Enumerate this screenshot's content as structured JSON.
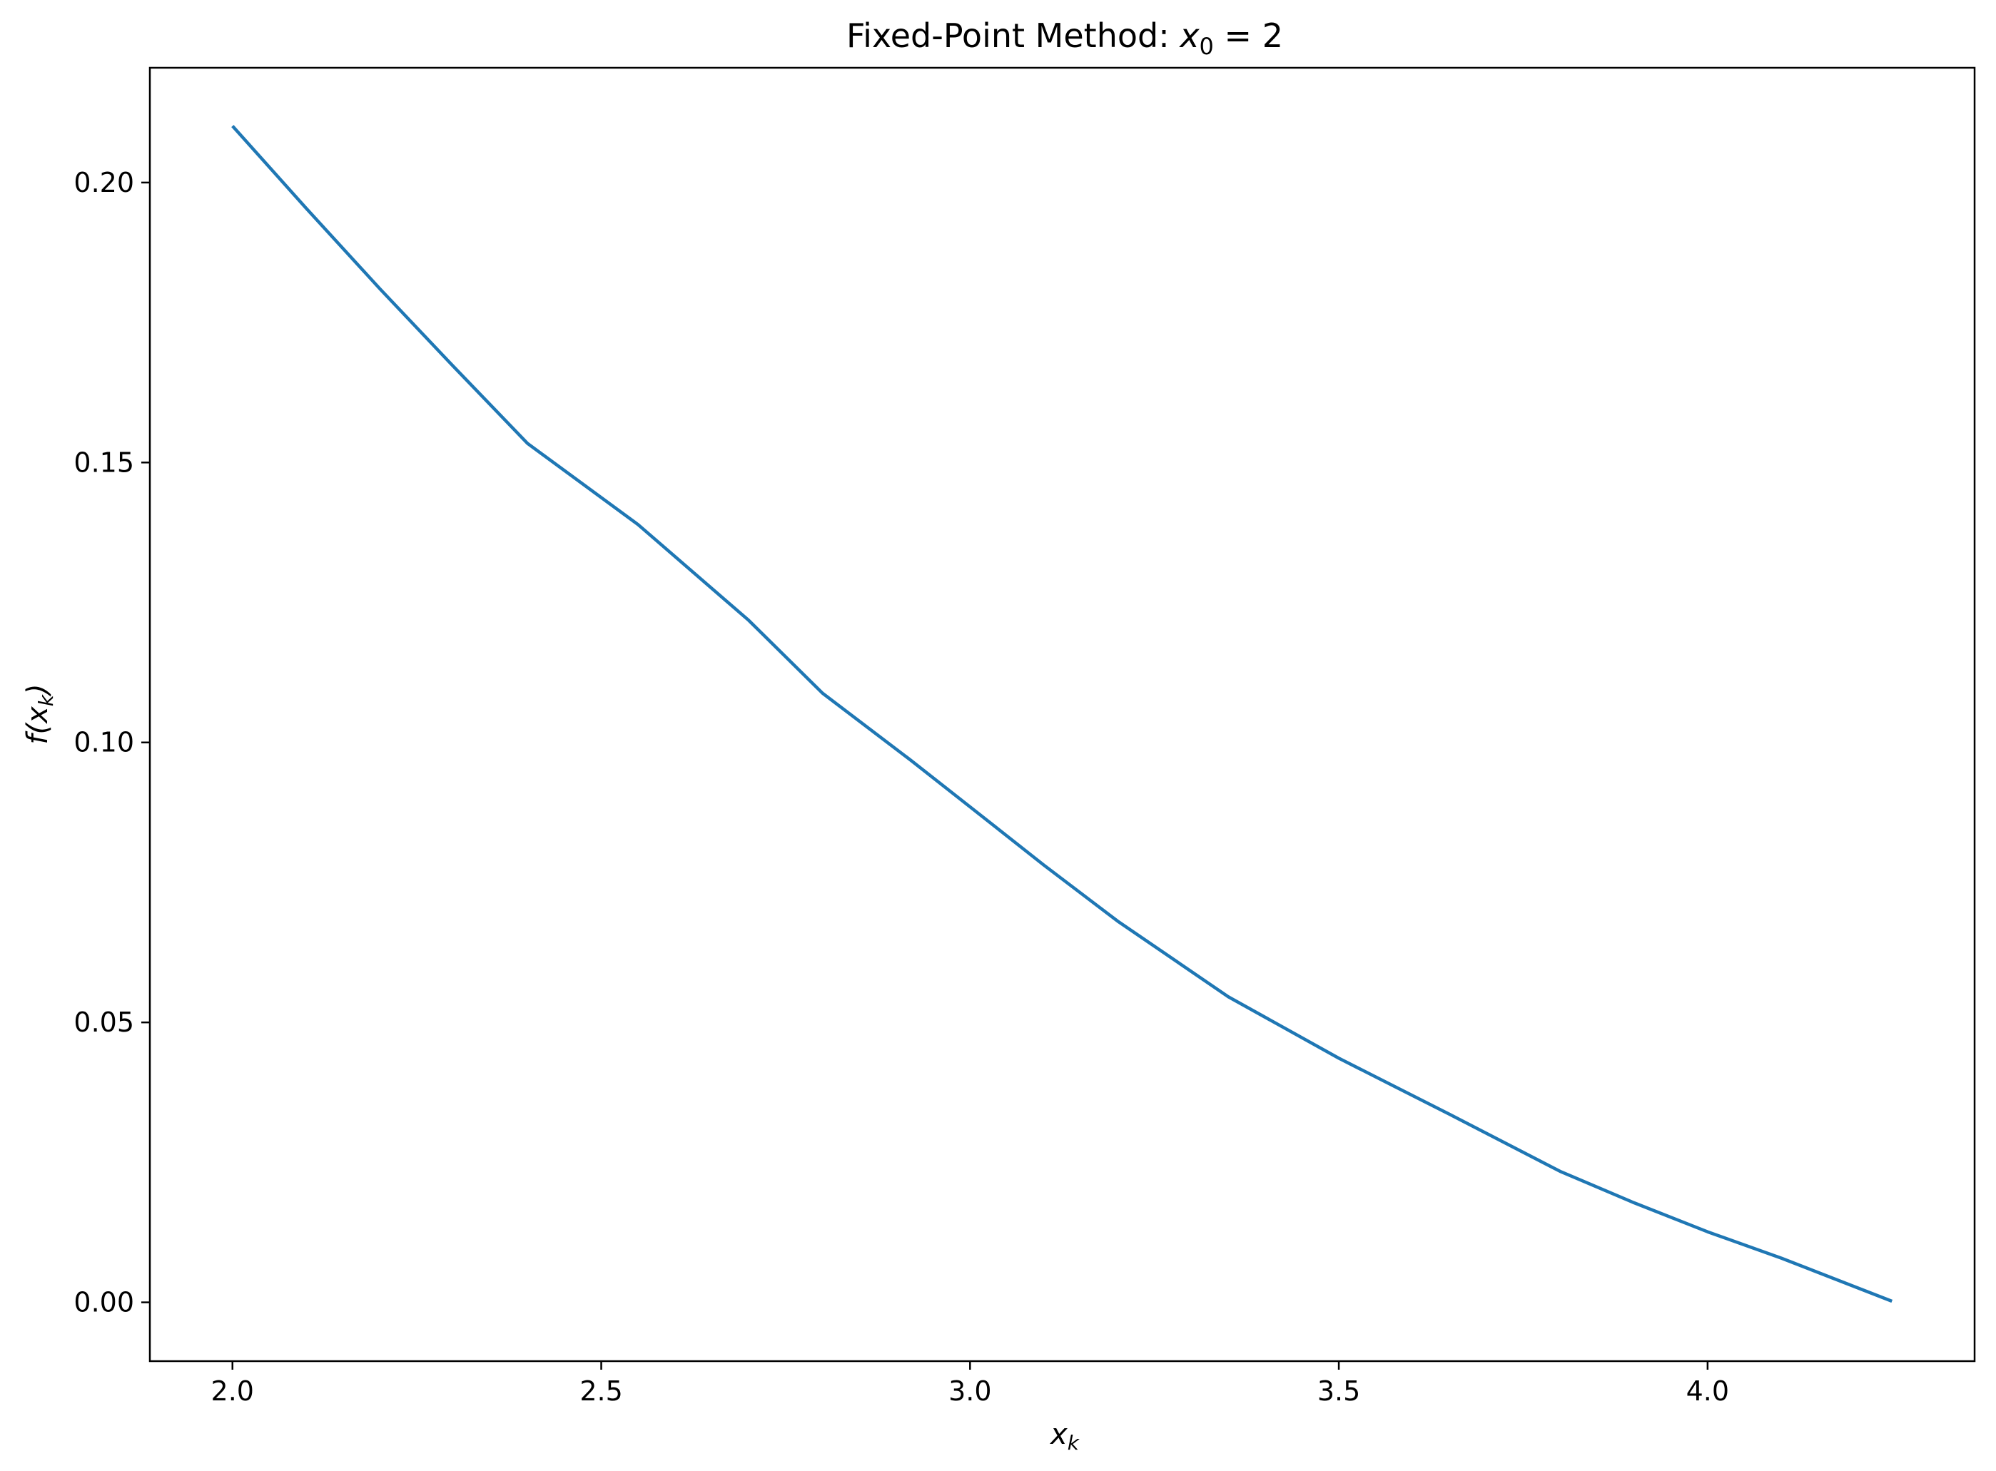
{
  "chart_data": {
    "type": "line",
    "title": {
      "prefix": "Fixed-Point Method: ",
      "var": "x",
      "sub": "0",
      "suffix": " = 2"
    },
    "xlabel": {
      "var": "x",
      "sub": "k"
    },
    "ylabel": {
      "func": "f(",
      "var": "x",
      "sub": "k",
      "close": ")"
    },
    "xlim": [
      1.888,
      4.362
    ],
    "ylim": [
      -0.0105,
      0.2205
    ],
    "xticks": [
      2.0,
      2.5,
      3.0,
      3.5,
      4.0
    ],
    "xtick_labels": [
      "2.0",
      "2.5",
      "3.0",
      "3.5",
      "4.0"
    ],
    "yticks": [
      0.0,
      0.05,
      0.1,
      0.15,
      0.2
    ],
    "ytick_labels": [
      "0.00",
      "0.05",
      "0.10",
      "0.15",
      "0.20"
    ],
    "grid": false,
    "legend": "none",
    "series": [
      {
        "color": "#1f77b4",
        "x": [
          2.0,
          2.1,
          2.2,
          2.3,
          2.4,
          2.55,
          2.7,
          2.8,
          2.92,
          3.0,
          3.1,
          3.2,
          3.35,
          3.5,
          3.65,
          3.8,
          3.9,
          4.0,
          4.1,
          4.25
        ],
        "y": [
          0.2101,
          0.1954,
          0.181,
          0.1671,
          0.1534,
          0.1389,
          0.1218,
          0.1088,
          0.0968,
          0.0885,
          0.0781,
          0.0681,
          0.0546,
          0.0436,
          0.0336,
          0.0234,
          0.0178,
          0.0126,
          0.0079,
          0.0002
        ]
      }
    ]
  }
}
